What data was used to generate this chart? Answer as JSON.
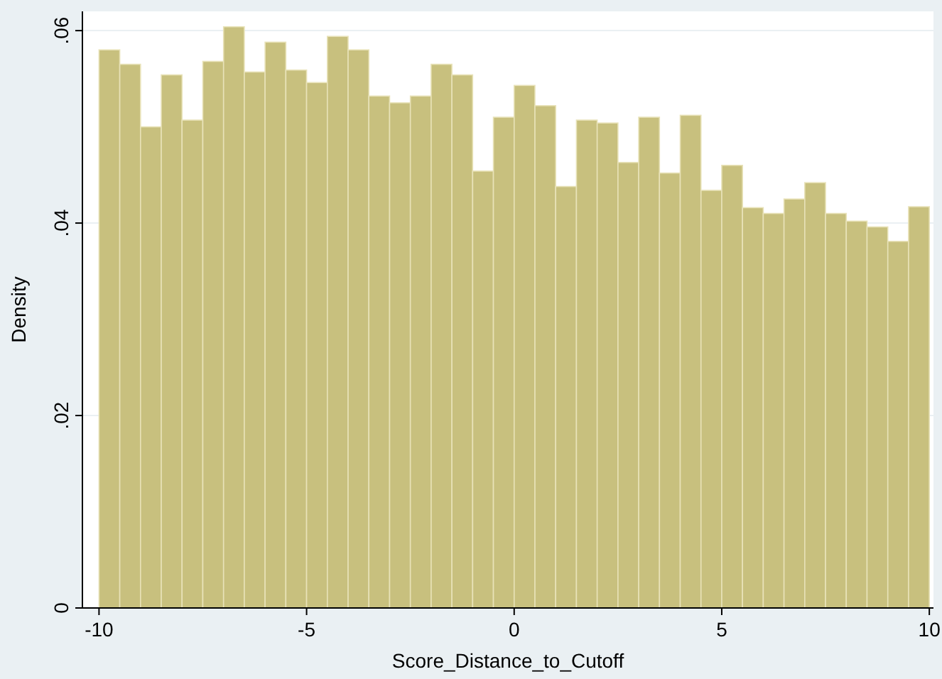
{
  "chart_data": {
    "type": "histogram",
    "xlabel": "Score_Distance_to_Cutoff",
    "ylabel": "Density",
    "color": "#c8c07e",
    "bins": [
      -10,
      -9.5,
      -9,
      -8.5,
      -8,
      -7.5,
      -7,
      -6.5,
      -6,
      -5.5,
      -5,
      -4.5,
      -4,
      -3.5,
      -3,
      -2.5,
      -2,
      -1.5,
      -1,
      -0.5,
      0,
      0.5,
      1,
      1.5,
      2,
      2.5,
      3,
      3.5,
      4,
      4.5,
      5,
      5.5,
      6,
      6.5,
      7,
      7.5,
      8,
      8.5,
      9,
      9.5,
      10
    ],
    "values": [
      0.058,
      0.0565,
      0.05,
      0.0554,
      0.0507,
      0.0568,
      0.0604,
      0.0557,
      0.0588,
      0.0559,
      0.0546,
      0.0594,
      0.058,
      0.0532,
      0.0525,
      0.0532,
      0.0565,
      0.0554,
      0.0454,
      0.051,
      0.0543,
      0.0522,
      0.0438,
      0.0507,
      0.0504,
      0.0463,
      0.051,
      0.0452,
      0.0512,
      0.0434,
      0.046,
      0.0416,
      0.041,
      0.0425,
      0.0442,
      0.041,
      0.0402,
      0.0396,
      0.0381,
      0.0417
    ],
    "xlim": [
      -10.4,
      10.1
    ],
    "ylim": [
      0,
      0.062
    ],
    "xticks": [
      -10,
      -5,
      0,
      5,
      10
    ],
    "yticks": [
      0,
      {
        "value": 0.02,
        "label": ".02"
      },
      {
        "value": 0.04,
        "label": ".04"
      },
      {
        "value": 0.06,
        "label": ".06"
      }
    ],
    "grid": "y"
  }
}
